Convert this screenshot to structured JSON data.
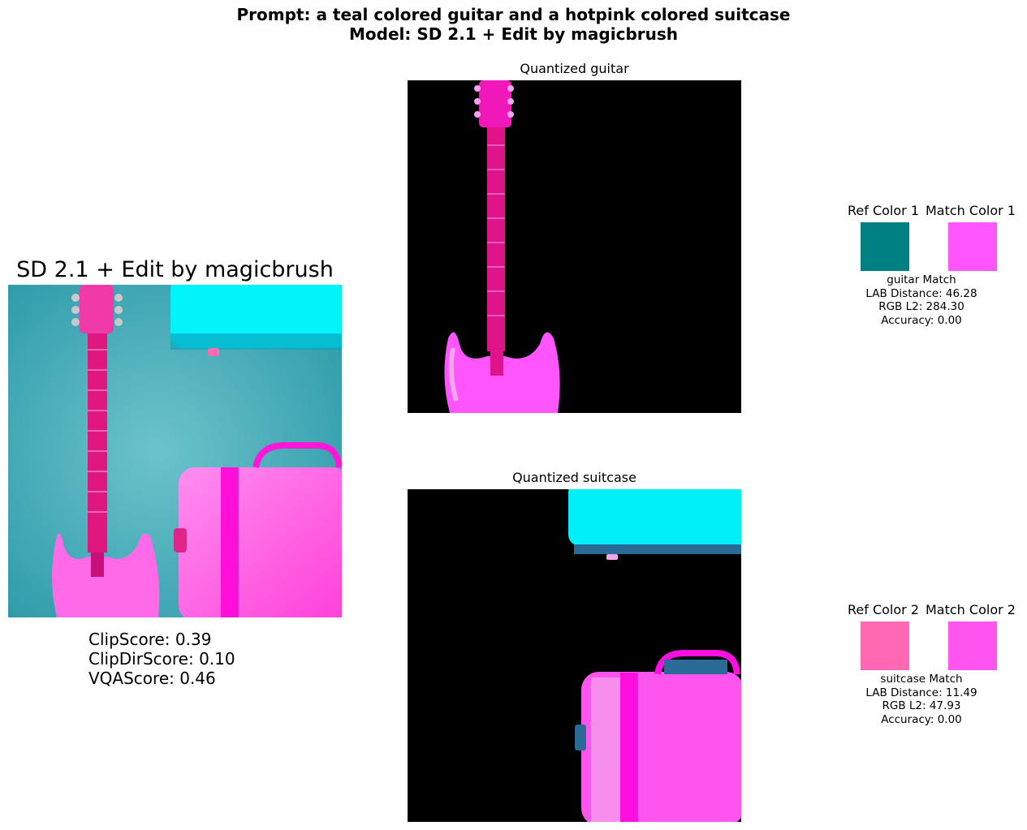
{
  "figure": {
    "title_line1": "Prompt: a teal colored guitar and a hotpink colored suitcase",
    "title_line2": "Model: SD 2.1 + Edit by magicbrush"
  },
  "main_panel": {
    "title": "SD 2.1 + Edit by magicbrush",
    "scores": [
      "ClipScore: 0.39",
      "ClipDirScore: 0.10",
      "VQAScore: 0.46"
    ]
  },
  "quantized": [
    {
      "title": "Quantized guitar"
    },
    {
      "title": "Quantized suitcase"
    }
  ],
  "color_matches": [
    {
      "ref_label": "Ref Color 1",
      "match_label": "Match Color 1",
      "ref_color": "#008080",
      "match_color": "#FF55FF",
      "caption": [
        "guitar Match",
        "LAB Distance: 46.28",
        "RGB L2: 284.30",
        "Accuracy: 0.00"
      ]
    },
    {
      "ref_label": "Ref Color 2",
      "match_label": "Match Color 2",
      "ref_color": "#FF69B4",
      "match_color": "#FF55EE",
      "caption": [
        "suitcase Match",
        "LAB Distance: 11.49",
        "RGB L2: 47.93",
        "Accuracy: 0.00"
      ]
    }
  ]
}
